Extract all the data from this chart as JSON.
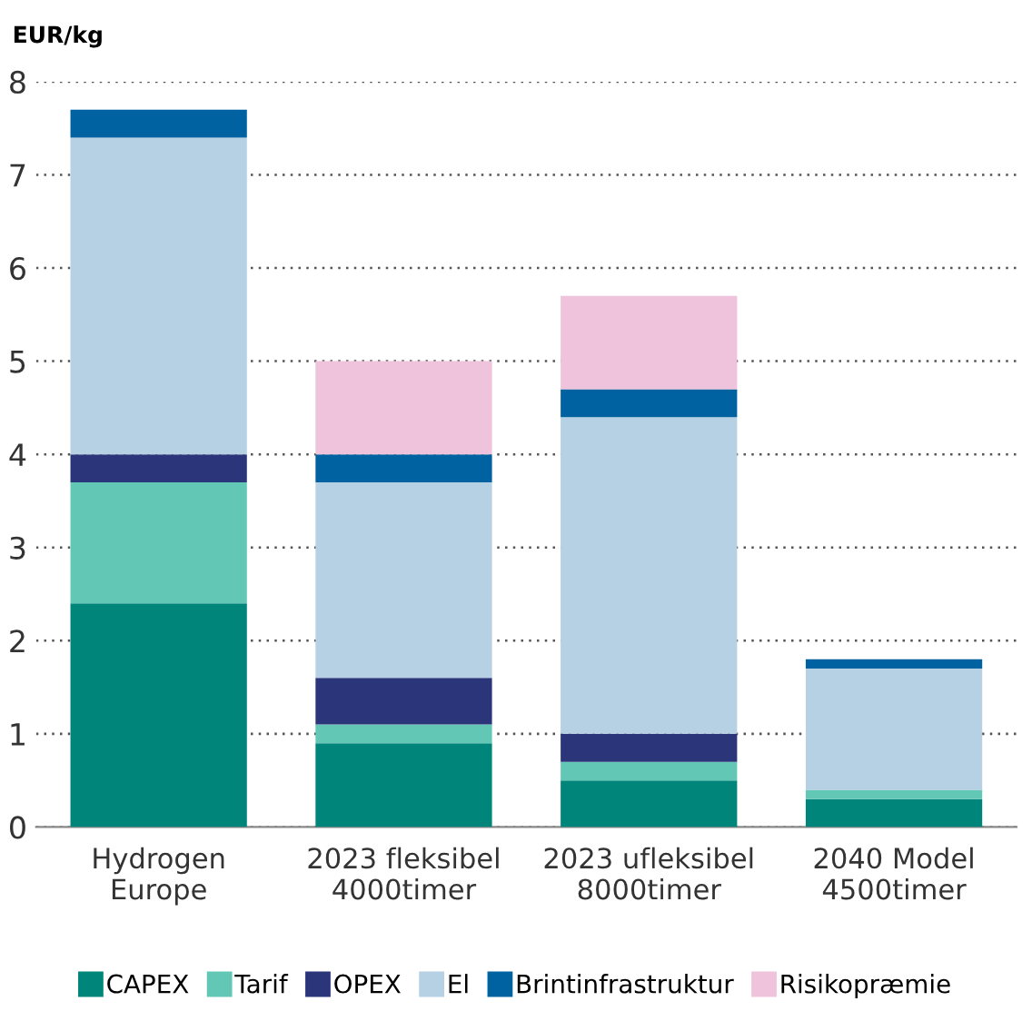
{
  "chart_data": {
    "type": "bar",
    "stacked": true,
    "ylabel": "EUR/kg",
    "categories": [
      "Hydrogen\nEurope",
      "2023 fleksibel\n4000timer",
      "2023 ufleksibel\n8000timer",
      "2040 Model\n4500timer"
    ],
    "series": [
      {
        "name": "CAPEX",
        "color": "#00857a",
        "values": [
          2.4,
          0.9,
          0.5,
          0.3
        ]
      },
      {
        "name": "Tarif",
        "color": "#63c7b6",
        "values": [
          1.3,
          0.2,
          0.2,
          0.1
        ]
      },
      {
        "name": "OPEX",
        "color": "#2b357a",
        "values": [
          0.3,
          0.5,
          0.3,
          0
        ]
      },
      {
        "name": "El",
        "color": "#b6d0e4",
        "values": [
          3.4,
          2.1,
          3.4,
          1.3
        ]
      },
      {
        "name": "Brintinfrastruktur",
        "color": "#0062a0",
        "values": [
          0.3,
          0.3,
          0.3,
          0.1
        ]
      },
      {
        "name": "Risikopræmie",
        "color": "#efc3dc",
        "values": [
          0,
          1.0,
          1.0,
          0
        ]
      }
    ],
    "ylim": [
      0,
      8
    ],
    "yticks": [
      0,
      1,
      2,
      3,
      4,
      5,
      6,
      7,
      8
    ],
    "grid": "y",
    "legend": "bottom"
  }
}
